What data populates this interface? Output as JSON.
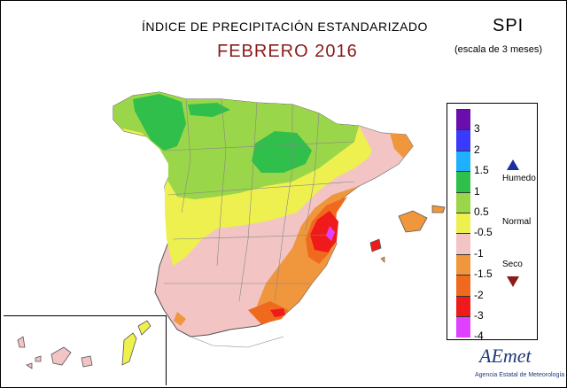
{
  "header": {
    "title": "ÍNDICE DE PRECIPITACIÓN ESTANDARIZADO",
    "subtitle": "FEBRERO 2016",
    "index_label": "SPI",
    "scale_note": "(escala de 3 meses)"
  },
  "legend": {
    "ticks": [
      "3",
      "2",
      "1.5",
      "1",
      "0.5",
      "-0.5",
      "-1",
      "-1.5",
      "-2",
      "-3",
      "-4"
    ],
    "swatch_colors": [
      "#6a0dad",
      "#3a3aff",
      "#1fb0ff",
      "#2fbf4a",
      "#9ad64a",
      "#eef050",
      "#f2c4c4",
      "#f0963c",
      "#f06a1e",
      "#f01a1a",
      "#e040ff"
    ],
    "categories": {
      "wet": "Humedo",
      "normal": "Normal",
      "dry": "Seco"
    },
    "wet_marker_color": "#1a2fa0",
    "dry_marker_color": "#8b1a1a"
  },
  "logo": {
    "name": "AEmet",
    "tagline": "Agencia Estatal de Meteorología"
  }
}
